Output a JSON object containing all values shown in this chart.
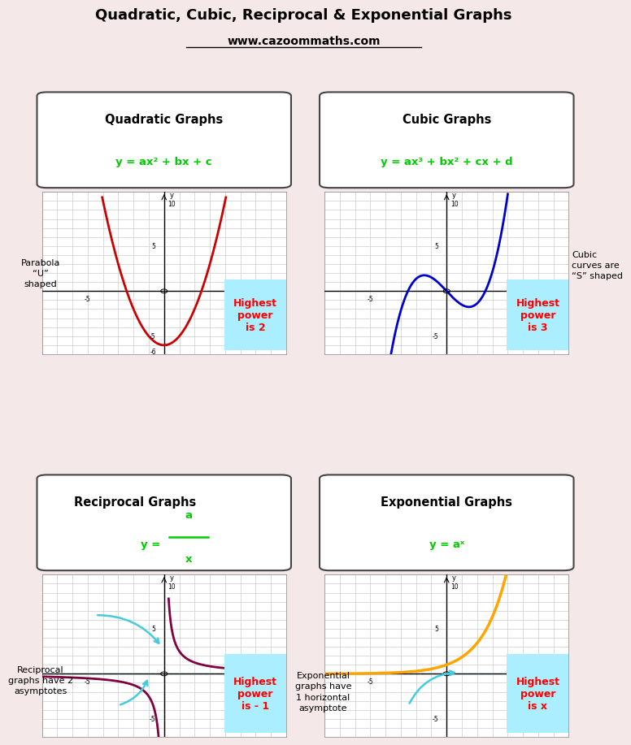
{
  "title": "Quadratic, Cubic, Reciprocal & Exponential Graphs",
  "subtitle": "www.cazoommaths.com",
  "bg_color": "#f5e8e8",
  "cyan_bg": "#aaeeff",
  "green_color": "#00cc00",
  "red_color": "#ff0000",
  "cyan_arrow": "#44ccdd",
  "quadratic": {
    "title": "Quadratic Graphs",
    "formula": "y = ax² + bx + c",
    "note_left": "Parabola\n“U”\nshaped",
    "note_right": "Highest\npower\nis 2",
    "curve_color": "#cc0000"
  },
  "cubic": {
    "title": "Cubic Graphs",
    "formula": "y = ax³ + bx² + cx + d",
    "note_left": "Cubic\ncurves are\n“S” shaped",
    "note_right": "Highest\npower\nis 3",
    "curve_color": "#0000cc"
  },
  "reciprocal": {
    "title": "Reciprocal Graphs",
    "note_left": "Reciprocal\ngraphs have 2\nasymptotes",
    "note_right": "Highest\npower\nis - 1",
    "curve_color": "#800040"
  },
  "exponential": {
    "title": "Exponential Graphs",
    "formula": "y = aˣ",
    "note_left": "Exponential\ngraphs have\n1 horizontal\nasymptote",
    "note_right": "Highest\npower\nis x",
    "curve_color": "#ffa500"
  }
}
